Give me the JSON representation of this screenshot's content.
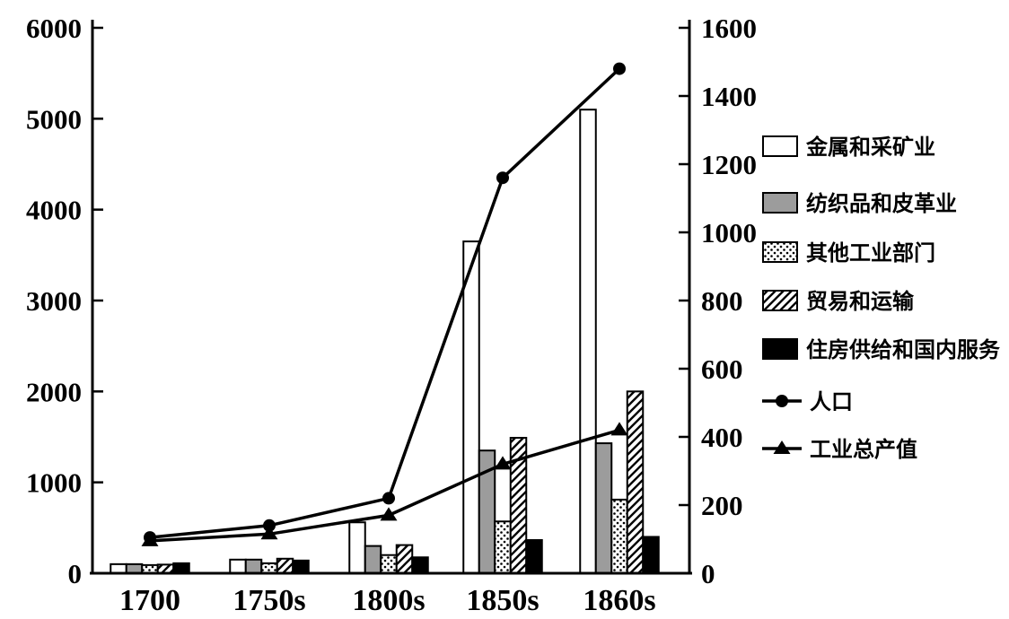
{
  "colors": {
    "background": "#ffffff",
    "ink": "#000000",
    "gray_fill": "#9c9c9c",
    "white_fill": "#ffffff",
    "black_fill": "#000000"
  },
  "chart_data": {
    "type": "combo: grouped bar (left axis) + line (right axis)",
    "title": "",
    "xlabel": "",
    "ylabel_left": "",
    "ylabel_right": "",
    "grid": "off",
    "legend_position": "right",
    "categories": [
      "1700",
      "1750s",
      "1800s",
      "1850s",
      "1860s"
    ],
    "bar_series": [
      {
        "name": "金属和采矿业",
        "slug": "metal-and-mining",
        "pattern": "white",
        "axis": "left",
        "values": [
          100,
          150,
          560,
          3650,
          5100
        ]
      },
      {
        "name": "纺织品和皮革业",
        "slug": "textiles-and-leather",
        "pattern": "gray",
        "axis": "left",
        "values": [
          100,
          150,
          300,
          1350,
          1430
        ]
      },
      {
        "name": "其他工业部门",
        "slug": "other-industry",
        "pattern": "dots",
        "axis": "left",
        "values": [
          90,
          110,
          200,
          570,
          810
        ]
      },
      {
        "name": "贸易和运输",
        "slug": "trade-and-transport",
        "pattern": "hatch",
        "axis": "left",
        "values": [
          95,
          160,
          310,
          1490,
          2000
        ]
      },
      {
        "name": "住房供给和国内服务",
        "slug": "housing-and-domestic-services",
        "pattern": "black",
        "axis": "left",
        "values": [
          110,
          140,
          175,
          365,
          400
        ]
      }
    ],
    "line_series": [
      {
        "name": "人口",
        "slug": "population",
        "marker": "circle",
        "axis": "right",
        "values": [
          105,
          140,
          220,
          1160,
          1480
        ]
      },
      {
        "name": "工业总产值",
        "slug": "gross-industrial-output",
        "marker": "triangle",
        "axis": "right",
        "values": [
          95,
          115,
          170,
          320,
          420
        ]
      }
    ],
    "left_axis": {
      "min": 0,
      "max": 6000,
      "step": 1000,
      "tick_labels": [
        "0",
        "1000",
        "2000",
        "3000",
        "4000",
        "5000",
        "6000"
      ]
    },
    "right_axis": {
      "min": 0,
      "max": 1600,
      "step": 200,
      "tick_labels": [
        "0",
        "200",
        "400",
        "600",
        "800",
        "1000",
        "1200",
        "1400",
        "1600"
      ]
    }
  }
}
